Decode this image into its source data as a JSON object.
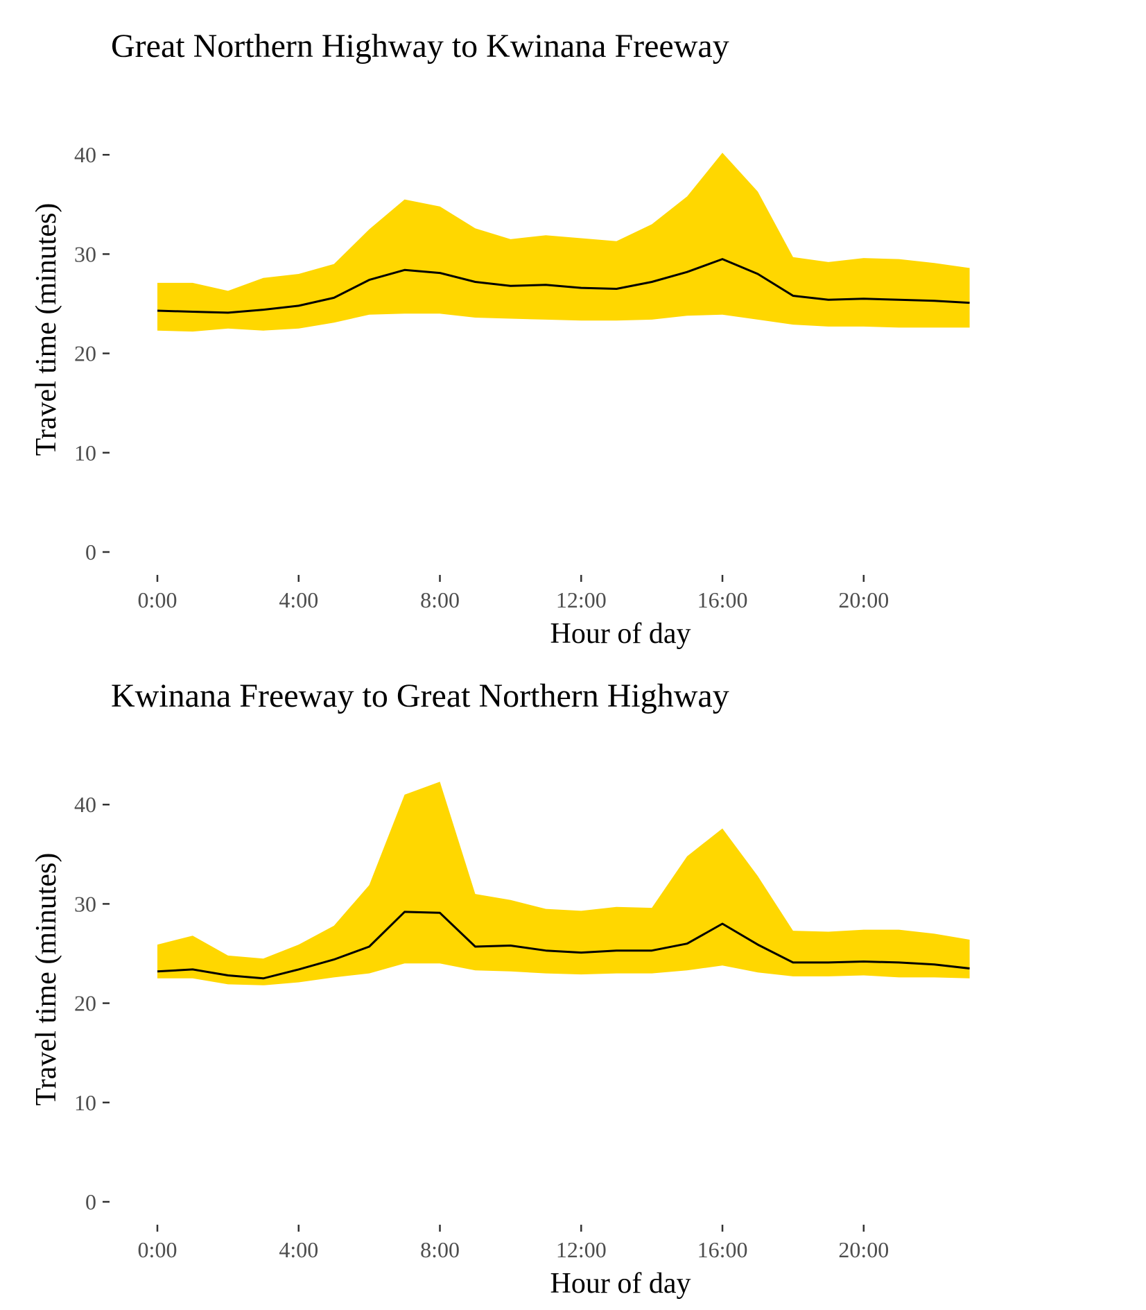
{
  "chart_data": [
    {
      "type": "area",
      "title": "Great Northern Highway to Kwinana Freeway",
      "xlabel": "Hour of day",
      "ylabel": "Travel time (minutes)",
      "x": [
        0,
        1,
        2,
        3,
        4,
        5,
        6,
        7,
        8,
        9,
        10,
        11,
        12,
        13,
        14,
        15,
        16,
        17,
        18,
        19,
        20,
        21,
        22,
        23
      ],
      "xlim": [
        0,
        23
      ],
      "ylim": [
        0,
        45
      ],
      "x_ticks": [
        0,
        4,
        8,
        12,
        16,
        20
      ],
      "x_tick_labels": [
        "0:00",
        "4:00",
        "8:00",
        "12:00",
        "16:00",
        "20:00"
      ],
      "y_ticks": [
        0,
        10,
        20,
        30,
        40
      ],
      "y_tick_labels": [
        "0",
        "10",
        "20",
        "30",
        "40"
      ],
      "grid": false,
      "band_color": "#FFD700",
      "line_color": "#000000",
      "series": [
        {
          "role": "upper",
          "values": [
            27.1,
            27.1,
            26.3,
            27.6,
            28.0,
            29.0,
            32.5,
            35.5,
            34.8,
            32.6,
            31.5,
            31.9,
            31.6,
            31.3,
            33.0,
            35.8,
            40.2,
            36.3,
            29.7,
            29.2,
            29.6,
            29.5,
            29.1,
            28.6
          ]
        },
        {
          "role": "median",
          "values": [
            24.3,
            24.2,
            24.1,
            24.4,
            24.8,
            25.6,
            27.4,
            28.4,
            28.1,
            27.2,
            26.8,
            26.9,
            26.6,
            26.5,
            27.2,
            28.2,
            29.5,
            28.0,
            25.8,
            25.4,
            25.5,
            25.4,
            25.3,
            25.1
          ]
        },
        {
          "role": "lower",
          "values": [
            22.3,
            22.2,
            22.5,
            22.3,
            22.5,
            23.1,
            23.9,
            24.0,
            24.0,
            23.6,
            23.5,
            23.4,
            23.3,
            23.3,
            23.4,
            23.8,
            23.9,
            23.4,
            22.9,
            22.7,
            22.7,
            22.6,
            22.6,
            22.6
          ]
        }
      ]
    },
    {
      "type": "area",
      "title": "Kwinana Freeway to Great Northern Highway",
      "xlabel": "Hour of day",
      "ylabel": "Travel time (minutes)",
      "x": [
        0,
        1,
        2,
        3,
        4,
        5,
        6,
        7,
        8,
        9,
        10,
        11,
        12,
        13,
        14,
        15,
        16,
        17,
        18,
        19,
        20,
        21,
        22,
        23
      ],
      "xlim": [
        0,
        23
      ],
      "ylim": [
        0,
        45
      ],
      "x_ticks": [
        0,
        4,
        8,
        12,
        16,
        20
      ],
      "x_tick_labels": [
        "0:00",
        "4:00",
        "8:00",
        "12:00",
        "16:00",
        "20:00"
      ],
      "y_ticks": [
        0,
        10,
        20,
        30,
        40
      ],
      "y_tick_labels": [
        "0",
        "10",
        "20",
        "30",
        "40"
      ],
      "grid": false,
      "band_color": "#FFD700",
      "line_color": "#000000",
      "series": [
        {
          "role": "upper",
          "values": [
            25.9,
            26.8,
            24.8,
            24.5,
            25.9,
            27.8,
            31.9,
            41.0,
            42.3,
            31.0,
            30.4,
            29.5,
            29.3,
            29.7,
            29.6,
            34.8,
            37.6,
            32.8,
            27.3,
            27.2,
            27.4,
            27.4,
            27.0,
            26.4
          ]
        },
        {
          "role": "median",
          "values": [
            23.2,
            23.4,
            22.8,
            22.5,
            23.4,
            24.4,
            25.7,
            29.2,
            29.1,
            25.7,
            25.8,
            25.3,
            25.1,
            25.3,
            25.3,
            26.0,
            28.0,
            25.9,
            24.1,
            24.1,
            24.2,
            24.1,
            23.9,
            23.5
          ]
        },
        {
          "role": "lower",
          "values": [
            22.5,
            22.5,
            21.9,
            21.8,
            22.1,
            22.6,
            23.0,
            24.0,
            24.0,
            23.3,
            23.2,
            23.0,
            22.9,
            23.0,
            23.0,
            23.3,
            23.8,
            23.1,
            22.7,
            22.7,
            22.8,
            22.6,
            22.6,
            22.5
          ]
        }
      ]
    }
  ]
}
